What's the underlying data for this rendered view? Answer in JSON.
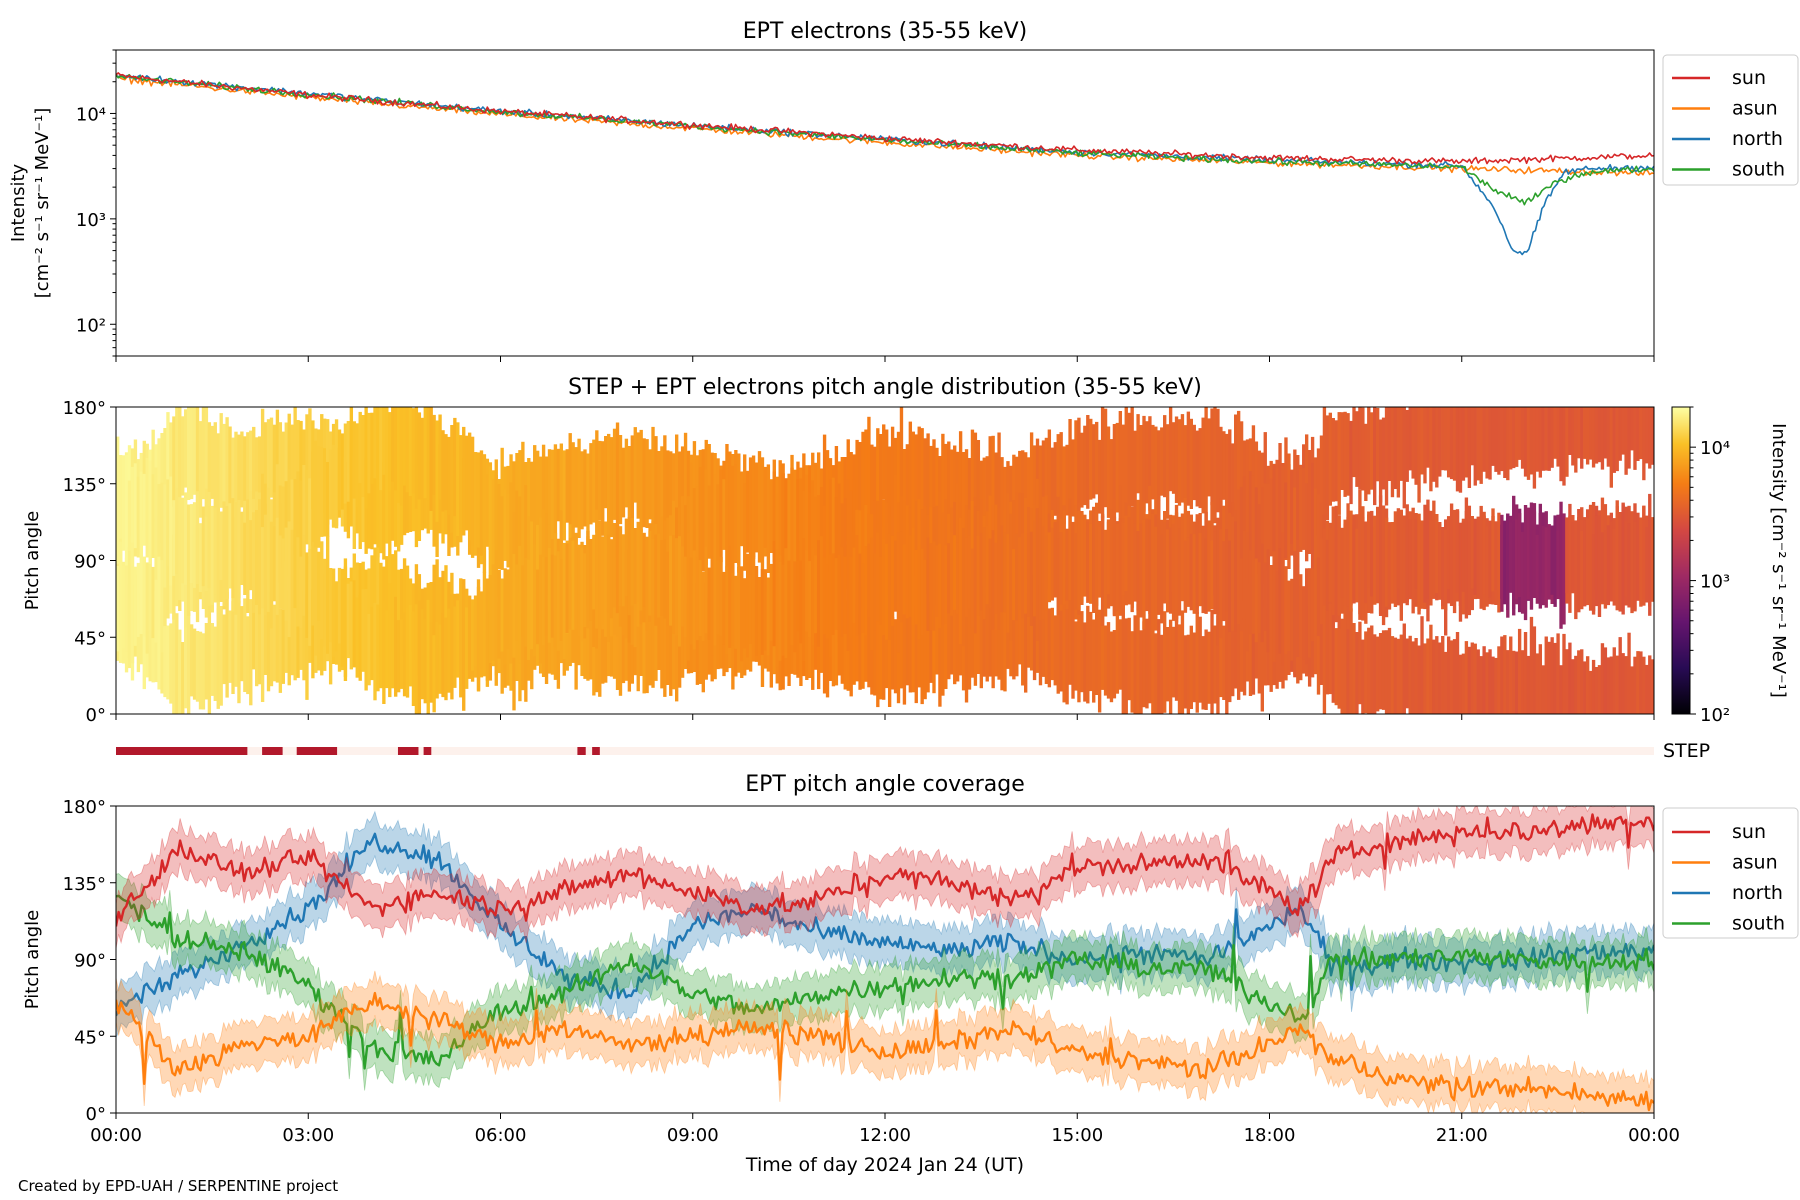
{
  "footer": {
    "credit": "Created by EPD-UAH / SERPENTINE project"
  },
  "colors": {
    "sun": "#d62728",
    "asun": "#ff7f0e",
    "north": "#1f77b4",
    "south": "#2ca02c",
    "step_on": "#b2182b",
    "step_off": "#fdf1ec"
  },
  "legend": {
    "entries": [
      "sun",
      "asun",
      "north",
      "south"
    ],
    "placement": "outside-right"
  },
  "chart_data": [
    {
      "id": "intensity",
      "type": "line",
      "title": "EPT electrons (35-55 keV)",
      "ylabel_lines": [
        "Intensity",
        "[cm⁻² s⁻¹ sr⁻¹ MeV⁻¹]"
      ],
      "yscale": "log",
      "ylim": [
        50,
        40000
      ],
      "yticks": [
        {
          "value": 100,
          "label": "10²"
        },
        {
          "value": 1000,
          "label": "10³"
        },
        {
          "value": 10000,
          "label": "10⁴"
        }
      ],
      "xlim": [
        "00:00",
        "24:00"
      ],
      "series": [
        {
          "name": "sun",
          "hours": [
            0,
            3,
            6,
            9,
            12,
            15,
            18,
            21,
            24
          ],
          "values": [
            23000,
            15000,
            10500,
            7800,
            5800,
            4500,
            3800,
            3500,
            4000
          ]
        },
        {
          "name": "asun",
          "hours": [
            0,
            3,
            6,
            9,
            12,
            15,
            18,
            21,
            24
          ],
          "values": [
            21500,
            14200,
            9800,
            7200,
            5300,
            4000,
            3400,
            3000,
            2700
          ]
        },
        {
          "name": "north",
          "hours": [
            0,
            3,
            6,
            9,
            12,
            15,
            18,
            21,
            21.5,
            21.8,
            22,
            22.3,
            22.6,
            23,
            24
          ],
          "values": [
            23000,
            15500,
            10500,
            7700,
            5700,
            4300,
            3600,
            3200,
            1300,
            500,
            450,
            1400,
            2800,
            3000,
            3100
          ]
        },
        {
          "name": "south",
          "hours": [
            0,
            3,
            6,
            9,
            12,
            15,
            18,
            21,
            21.5,
            22,
            22.5,
            23,
            24
          ],
          "values": [
            22500,
            15200,
            10400,
            7600,
            5600,
            4200,
            3500,
            3100,
            1900,
            1400,
            2300,
            2800,
            3000
          ]
        }
      ]
    },
    {
      "id": "pad",
      "type": "heatmap",
      "title": "STEP + EPT electrons pitch angle distribution (35-55 keV)",
      "ylabel": "Pitch angle",
      "ylim": [
        0,
        180
      ],
      "yticks": [
        "0°",
        "45°",
        "90°",
        "135°",
        "180°"
      ],
      "colorbar": {
        "label": "Intensity [cm⁻² s⁻¹ sr⁻¹ MeV⁻¹]",
        "scale": "log",
        "range": [
          100,
          20000
        ],
        "ticks": [
          {
            "value": 100,
            "label": "10²"
          },
          {
            "value": 1000,
            "label": "10³"
          },
          {
            "value": 10000,
            "label": "10⁴"
          }
        ]
      },
      "intensity_trend": {
        "hours": [
          0,
          3,
          6,
          9,
          12,
          15,
          18,
          21,
          24
        ],
        "values": [
          18000,
          12000,
          8500,
          6500,
          5000,
          4000,
          3500,
          3100,
          3000
        ]
      },
      "dip": {
        "hours": [
          21.6,
          22.6
        ],
        "pitch": [
          45,
          105
        ],
        "value": 900
      }
    },
    {
      "id": "step",
      "type": "bar",
      "label": "STEP",
      "on_intervals_hours": [
        [
          0,
          2.05
        ],
        [
          2.28,
          2.6
        ],
        [
          2.82,
          3.45
        ],
        [
          4.4,
          4.72
        ],
        [
          4.8,
          4.92
        ],
        [
          7.2,
          7.33
        ],
        [
          7.43,
          7.55
        ]
      ]
    },
    {
      "id": "coverage",
      "type": "line",
      "title": "EPT pitch angle coverage",
      "ylabel": "Pitch angle",
      "xlabel": "Time of day 2024 Jan 24 (UT)",
      "ylim": [
        0,
        180
      ],
      "yticks": [
        "0°",
        "45°",
        "90°",
        "135°",
        "180°"
      ],
      "xticks": [
        "00:00",
        "03:00",
        "06:00",
        "09:00",
        "12:00",
        "15:00",
        "18:00",
        "21:00",
        "00:00"
      ],
      "band_halfwidth_deg": 13,
      "series": [
        {
          "name": "sun",
          "hours": [
            0,
            1,
            2,
            3,
            4,
            5,
            6,
            7,
            8,
            9,
            10,
            11,
            12,
            13,
            14,
            15,
            16,
            17,
            18,
            18.5,
            19,
            20,
            21,
            22,
            23,
            24
          ],
          "values": [
            115,
            155,
            140,
            150,
            120,
            130,
            120,
            130,
            140,
            130,
            120,
            125,
            140,
            135,
            125,
            145,
            145,
            150,
            130,
            120,
            150,
            160,
            165,
            165,
            170,
            172
          ]
        },
        {
          "name": "asun",
          "hours": [
            0,
            1,
            2,
            3,
            4,
            5,
            6,
            7,
            8,
            9,
            10,
            11,
            12,
            13,
            14,
            15,
            16,
            17,
            18,
            18.5,
            19,
            20,
            21,
            22,
            23,
            24
          ],
          "values": [
            65,
            25,
            40,
            45,
            65,
            55,
            40,
            50,
            40,
            45,
            50,
            45,
            35,
            40,
            50,
            35,
            30,
            25,
            40,
            50,
            30,
            20,
            15,
            15,
            10,
            8
          ]
        },
        {
          "name": "north",
          "hours": [
            0,
            1,
            2,
            3,
            4,
            5,
            6,
            7,
            8,
            9,
            10,
            11,
            12,
            13,
            14,
            15,
            16,
            17,
            18,
            18.5,
            19,
            20,
            21,
            22,
            23,
            24
          ],
          "values": [
            60,
            80,
            100,
            120,
            160,
            150,
            110,
            80,
            70,
            110,
            120,
            105,
            100,
            95,
            100,
            90,
            95,
            90,
            110,
            120,
            85,
            90,
            88,
            90,
            95,
            95
          ]
        },
        {
          "name": "south",
          "hours": [
            0,
            1,
            2,
            3,
            4,
            5,
            6,
            7,
            8,
            9,
            10,
            11,
            12,
            13,
            14,
            15,
            16,
            17,
            18,
            18.5,
            19,
            20,
            21,
            22,
            23,
            24
          ],
          "values": [
            130,
            100,
            95,
            75,
            40,
            30,
            60,
            70,
            90,
            70,
            60,
            70,
            75,
            80,
            80,
            90,
            85,
            85,
            65,
            55,
            90,
            90,
            92,
            90,
            88,
            90
          ]
        }
      ]
    }
  ]
}
